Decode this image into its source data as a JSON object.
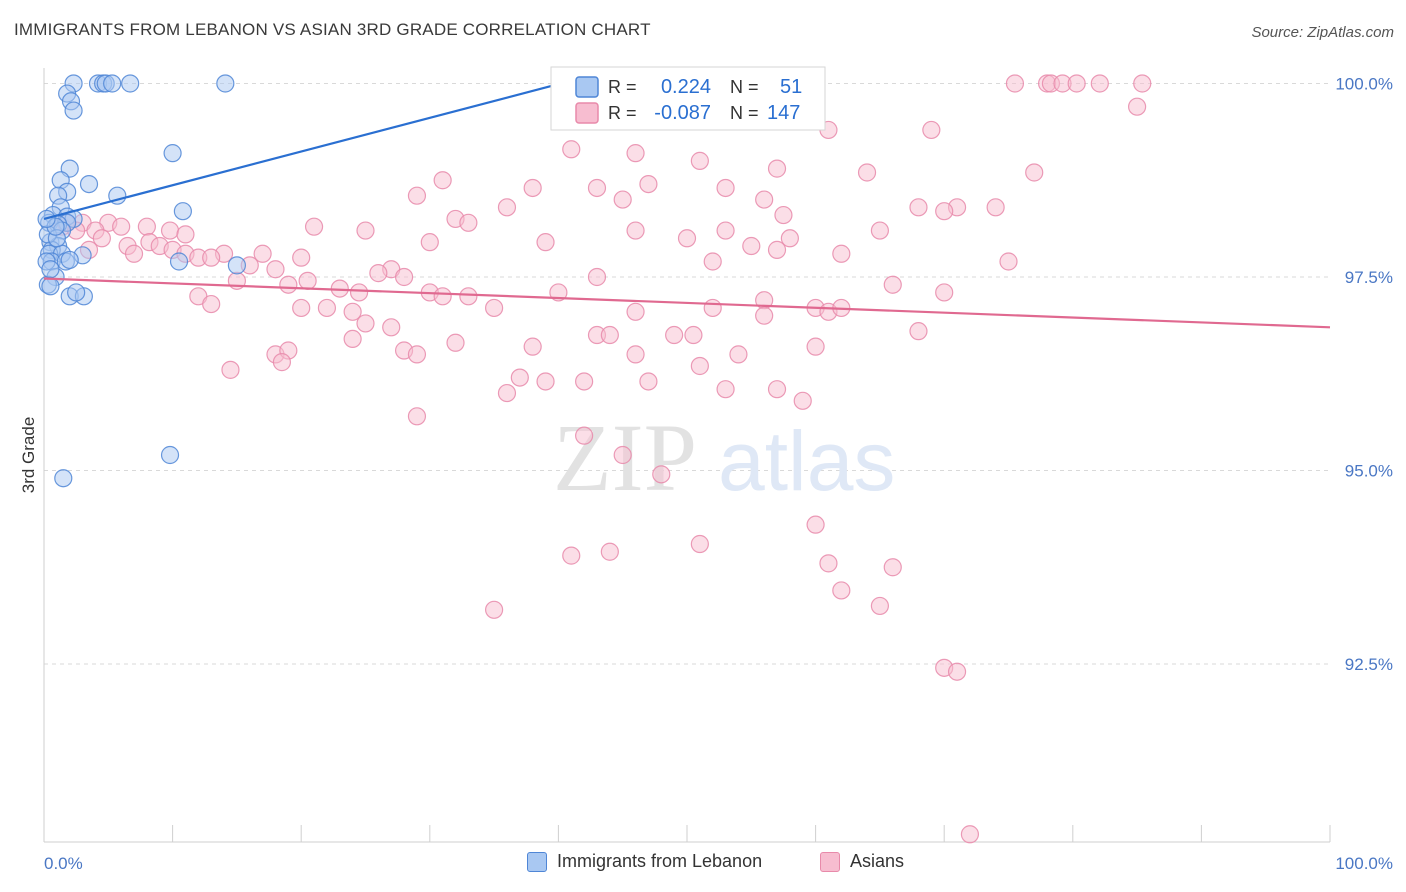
{
  "header": {
    "title": "IMMIGRANTS FROM LEBANON VS ASIAN 3RD GRADE CORRELATION CHART",
    "source": "Source: ZipAtlas.com"
  },
  "watermark": {
    "zip": "ZIP",
    "atlas": "atlas"
  },
  "colors": {
    "lebanon_fill": "#a9c8f2",
    "lebanon_stroke": "#4f86d6",
    "lebanon_line": "#2a6fd1",
    "asian_fill": "#f7bdd0",
    "asian_stroke": "#e88aaa",
    "asian_line": "#e06990",
    "tick_text": "#4a77c4",
    "grid": "#d9d9d9"
  },
  "legend": {
    "rows": [
      {
        "r_label": "R =",
        "r_value": "0.224",
        "n_label": "N =",
        "n_value": "51"
      },
      {
        "r_label": "R =",
        "r_value": "-0.087",
        "n_label": "N =",
        "n_value": "147"
      }
    ]
  },
  "bottom_legend": {
    "lebanon": "Immigrants from Lebanon",
    "asians": "Asians"
  },
  "chart_data": {
    "type": "scatter",
    "title": "IMMIGRANTS FROM LEBANON VS ASIAN 3RD GRADE CORRELATION CHART",
    "xlabel": "",
    "ylabel": "3rd Grade",
    "xlim": [
      0,
      100
    ],
    "ylim": [
      90.2,
      100.2
    ],
    "x_tick_labels": [
      "0.0%",
      "100.0%"
    ],
    "y_ticks": [
      92.5,
      95.0,
      97.5,
      100.0
    ],
    "y_tick_labels": [
      "92.5%",
      "95.0%",
      "97.5%",
      "100.0%"
    ],
    "grid": true,
    "legend_position": "top-center",
    "series": [
      {
        "name": "Immigrants from Lebanon",
        "r": 0.224,
        "n": 51,
        "trend": {
          "x": [
            0,
            40.2
          ],
          "y": [
            98.25,
            100.0
          ]
        },
        "points": [
          [
            2.3,
            100.0
          ],
          [
            4.2,
            100.0
          ],
          [
            4.6,
            100.0
          ],
          [
            4.8,
            100.0
          ],
          [
            5.3,
            100.0
          ],
          [
            6.7,
            100.0
          ],
          [
            14.1,
            100.0
          ],
          [
            1.8,
            99.87
          ],
          [
            2.1,
            99.77
          ],
          [
            2.3,
            99.65
          ],
          [
            10.0,
            99.1
          ],
          [
            2.0,
            98.9
          ],
          [
            1.3,
            98.75
          ],
          [
            3.5,
            98.7
          ],
          [
            1.8,
            98.6
          ],
          [
            1.1,
            98.55
          ],
          [
            5.7,
            98.55
          ],
          [
            1.3,
            98.4
          ],
          [
            0.7,
            98.3
          ],
          [
            1.8,
            98.28
          ],
          [
            2.3,
            98.25
          ],
          [
            1.8,
            98.2
          ],
          [
            10.8,
            98.35
          ],
          [
            0.4,
            98.2
          ],
          [
            1.1,
            98.18
          ],
          [
            1.4,
            98.1
          ],
          [
            0.5,
            97.95
          ],
          [
            1.1,
            97.9
          ],
          [
            0.6,
            97.85
          ],
          [
            0.4,
            97.8
          ],
          [
            1.4,
            97.8
          ],
          [
            3.0,
            97.78
          ],
          [
            0.6,
            97.7
          ],
          [
            0.2,
            97.7
          ],
          [
            1.7,
            97.7
          ],
          [
            2.0,
            97.72
          ],
          [
            10.5,
            97.7
          ],
          [
            15.0,
            97.65
          ],
          [
            0.9,
            97.5
          ],
          [
            0.3,
            97.4
          ],
          [
            0.5,
            97.38
          ],
          [
            2.0,
            97.25
          ],
          [
            3.1,
            97.25
          ],
          [
            9.8,
            95.2
          ],
          [
            1.5,
            94.9
          ],
          [
            0.3,
            98.05
          ],
          [
            1.0,
            98.0
          ],
          [
            0.9,
            98.15
          ],
          [
            0.2,
            98.25
          ],
          [
            0.5,
            97.6
          ],
          [
            2.5,
            97.3
          ]
        ]
      },
      {
        "name": "Asians",
        "r": -0.087,
        "n": 147,
        "trend": {
          "x": [
            0,
            100
          ],
          "y": [
            97.48,
            96.85
          ]
        },
        "points": [
          [
            75.5,
            100.0
          ],
          [
            78.0,
            100.0
          ],
          [
            78.3,
            100.0
          ],
          [
            79.2,
            100.0
          ],
          [
            80.3,
            100.0
          ],
          [
            82.1,
            100.0
          ],
          [
            85.4,
            100.0
          ],
          [
            85.0,
            99.7
          ],
          [
            69.0,
            99.4
          ],
          [
            61.0,
            99.4
          ],
          [
            46.0,
            99.1
          ],
          [
            41.0,
            99.15
          ],
          [
            51.0,
            99.0
          ],
          [
            57.0,
            98.9
          ],
          [
            64.0,
            98.85
          ],
          [
            77.0,
            98.85
          ],
          [
            31.0,
            98.75
          ],
          [
            47.0,
            98.7
          ],
          [
            38.0,
            98.65
          ],
          [
            43.0,
            98.65
          ],
          [
            53.0,
            98.65
          ],
          [
            29.0,
            98.55
          ],
          [
            45.0,
            98.5
          ],
          [
            56.0,
            98.5
          ],
          [
            36.0,
            98.4
          ],
          [
            68.0,
            98.4
          ],
          [
            71.0,
            98.4
          ],
          [
            74.0,
            98.4
          ],
          [
            70.0,
            98.35
          ],
          [
            57.5,
            98.3
          ],
          [
            32.0,
            98.25
          ],
          [
            33.0,
            98.2
          ],
          [
            5.0,
            98.2
          ],
          [
            6.0,
            98.15
          ],
          [
            3.0,
            98.2
          ],
          [
            1.4,
            98.15
          ],
          [
            1.7,
            98.2
          ],
          [
            2.5,
            98.1
          ],
          [
            4.0,
            98.1
          ],
          [
            8.0,
            98.15
          ],
          [
            21.0,
            98.15
          ],
          [
            25.0,
            98.1
          ],
          [
            46.0,
            98.1
          ],
          [
            53.0,
            98.1
          ],
          [
            65.0,
            98.1
          ],
          [
            50.0,
            98.0
          ],
          [
            58.0,
            98.0
          ],
          [
            30.0,
            97.95
          ],
          [
            39.0,
            97.95
          ],
          [
            55.0,
            97.9
          ],
          [
            57.0,
            97.85
          ],
          [
            6.5,
            97.9
          ],
          [
            8.2,
            97.95
          ],
          [
            9.0,
            97.9
          ],
          [
            10.0,
            97.85
          ],
          [
            11.0,
            97.8
          ],
          [
            12.0,
            97.75
          ],
          [
            14.0,
            97.8
          ],
          [
            17.0,
            97.8
          ],
          [
            20.0,
            97.75
          ],
          [
            62.0,
            97.8
          ],
          [
            75.0,
            97.7
          ],
          [
            52.0,
            97.7
          ],
          [
            13.0,
            97.75
          ],
          [
            16.0,
            97.65
          ],
          [
            18.0,
            97.6
          ],
          [
            27.0,
            97.6
          ],
          [
            26.0,
            97.55
          ],
          [
            28.0,
            97.5
          ],
          [
            43.0,
            97.5
          ],
          [
            15.0,
            97.45
          ],
          [
            19.0,
            97.4
          ],
          [
            20.5,
            97.45
          ],
          [
            23.0,
            97.35
          ],
          [
            24.5,
            97.3
          ],
          [
            30.0,
            97.3
          ],
          [
            31.0,
            97.25
          ],
          [
            33.0,
            97.25
          ],
          [
            40.0,
            97.3
          ],
          [
            56.0,
            97.2
          ],
          [
            66.0,
            97.4
          ],
          [
            70.0,
            97.3
          ],
          [
            12.0,
            97.25
          ],
          [
            13.0,
            97.15
          ],
          [
            20.0,
            97.1
          ],
          [
            22.0,
            97.1
          ],
          [
            24.0,
            97.05
          ],
          [
            35.0,
            97.1
          ],
          [
            46.0,
            97.05
          ],
          [
            52.0,
            97.1
          ],
          [
            56.0,
            97.0
          ],
          [
            60.0,
            97.1
          ],
          [
            61.0,
            97.05
          ],
          [
            62.0,
            97.1
          ],
          [
            25.0,
            96.9
          ],
          [
            27.0,
            96.85
          ],
          [
            43.0,
            96.75
          ],
          [
            44.0,
            96.75
          ],
          [
            49.0,
            96.75
          ],
          [
            50.5,
            96.75
          ],
          [
            24.0,
            96.7
          ],
          [
            32.0,
            96.65
          ],
          [
            60.0,
            96.6
          ],
          [
            68.0,
            96.8
          ],
          [
            28.0,
            96.55
          ],
          [
            29.0,
            96.5
          ],
          [
            38.0,
            96.6
          ],
          [
            46.0,
            96.5
          ],
          [
            54.0,
            96.5
          ],
          [
            18.0,
            96.5
          ],
          [
            19.0,
            96.55
          ],
          [
            14.5,
            96.3
          ],
          [
            18.5,
            96.4
          ],
          [
            51.0,
            96.35
          ],
          [
            47.0,
            96.15
          ],
          [
            37.0,
            96.2
          ],
          [
            39.0,
            96.15
          ],
          [
            42.0,
            96.15
          ],
          [
            36.0,
            96.0
          ],
          [
            53.0,
            96.05
          ],
          [
            57.0,
            96.05
          ],
          [
            59.0,
            95.9
          ],
          [
            29.0,
            95.7
          ],
          [
            42.0,
            95.45
          ],
          [
            45.0,
            95.2
          ],
          [
            48.0,
            94.95
          ],
          [
            60.0,
            94.3
          ],
          [
            51.0,
            94.05
          ],
          [
            44.0,
            93.95
          ],
          [
            41.0,
            93.9
          ],
          [
            61.0,
            93.8
          ],
          [
            66.0,
            93.75
          ],
          [
            62.0,
            93.45
          ],
          [
            65.0,
            93.25
          ],
          [
            35.0,
            93.2
          ],
          [
            70.0,
            92.45
          ],
          [
            71.0,
            92.4
          ],
          [
            72.0,
            90.3
          ],
          [
            9.8,
            98.1
          ],
          [
            11.0,
            98.05
          ],
          [
            4.5,
            98.0
          ],
          [
            3.5,
            97.85
          ],
          [
            7.0,
            97.8
          ]
        ]
      }
    ]
  }
}
